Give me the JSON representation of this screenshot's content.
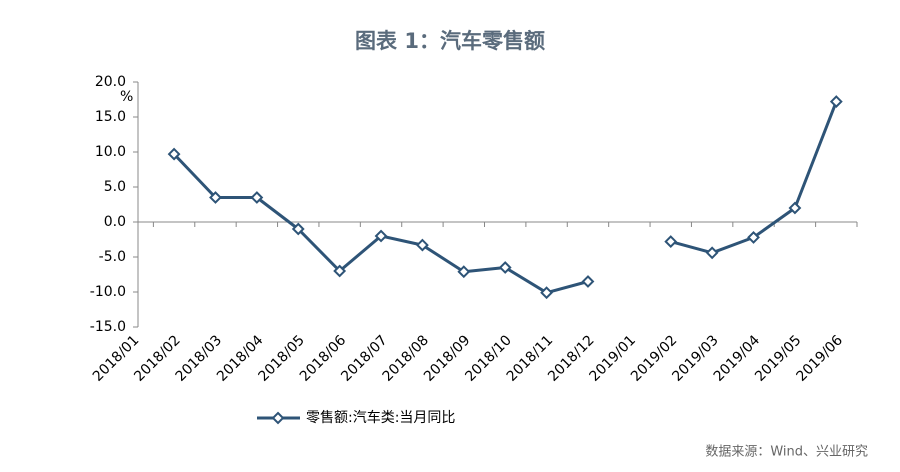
{
  "chart_data": {
    "type": "line",
    "title": "图表 1：汽车零售额",
    "y_unit": "%",
    "source": "数据来源：Wind、兴业研究",
    "categories": [
      "2018/01",
      "2018/02",
      "2018/03",
      "2018/04",
      "2018/05",
      "2018/06",
      "2018/07",
      "2018/08",
      "2018/09",
      "2018/10",
      "2018/11",
      "2018/12",
      "2019/01",
      "2019/02",
      "2019/03",
      "2019/04",
      "2019/05",
      "2019/06"
    ],
    "series": [
      {
        "name": "零售额:汽车类:当月同比",
        "color": "#2e5477",
        "values": [
          null,
          9.7,
          3.5,
          3.5,
          -1.0,
          -7.0,
          -2.0,
          -3.3,
          -7.1,
          -6.5,
          -10.1,
          -8.5,
          null,
          -2.8,
          -4.4,
          -2.2,
          2.0,
          17.2
        ]
      }
    ],
    "ylim": [
      -15,
      20
    ],
    "yticks": [
      {
        "value": -15,
        "label": "-15.0"
      },
      {
        "value": -10,
        "label": "-10.0"
      },
      {
        "value": -5,
        "label": "-5.0"
      },
      {
        "value": 0,
        "label": "0.0"
      },
      {
        "value": 5,
        "label": "5.0"
      },
      {
        "value": 10,
        "label": "10.0"
      },
      {
        "value": 15,
        "label": "15.0"
      },
      {
        "value": 20,
        "label": "20.0"
      }
    ],
    "legend": "bottom"
  }
}
